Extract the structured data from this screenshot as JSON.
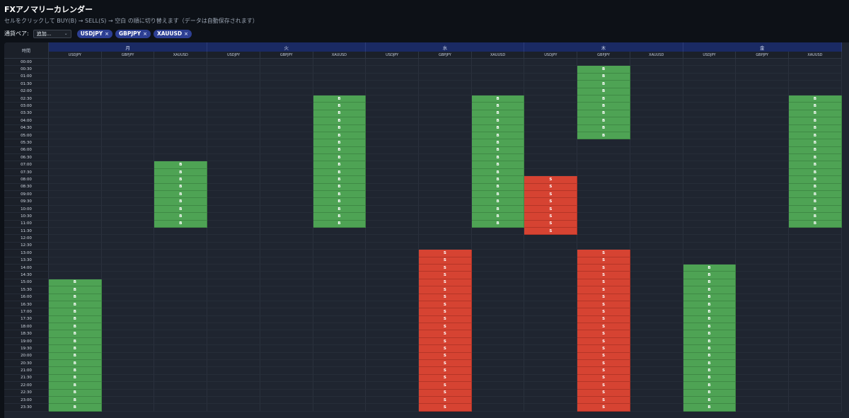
{
  "app": {
    "title": "FXアノマリーカレンダー",
    "subtitle": "セルをクリックして BUY(B) → SELL(S) → 空白 の順に切り替えます（データは自動保存されます）"
  },
  "pair_bar": {
    "label": "通貨ペア:",
    "add_select_value": "追加...",
    "chips": [
      {
        "label": "USDJPY",
        "remove": "×"
      },
      {
        "label": "GBPJPY",
        "remove": "×"
      },
      {
        "label": "XAUUSD",
        "remove": "×"
      }
    ]
  },
  "calendar": {
    "time_header": "時間",
    "days": [
      "月",
      "火",
      "水",
      "木",
      "金"
    ],
    "pairs": [
      "USDJPY",
      "GBPJPY",
      "XAUUSD"
    ],
    "buy_label": "B",
    "sell_label": "S",
    "times": [
      "00:00",
      "00:30",
      "01:00",
      "01:30",
      "02:00",
      "02:30",
      "03:00",
      "03:30",
      "04:00",
      "04:30",
      "05:00",
      "05:30",
      "06:00",
      "06:30",
      "07:00",
      "07:30",
      "08:00",
      "08:30",
      "09:00",
      "09:30",
      "10:00",
      "10:30",
      "11:00",
      "11:30",
      "12:00",
      "12:30",
      "13:00",
      "13:30",
      "14:00",
      "14:30",
      "15:00",
      "15:30",
      "16:00",
      "16:30",
      "17:00",
      "17:30",
      "18:00",
      "18:30",
      "19:00",
      "19:30",
      "20:00",
      "20:30",
      "21:00",
      "21:30",
      "22:00",
      "22:30",
      "23:00",
      "23:30"
    ],
    "signals": [
      {
        "day": "月",
        "pair": "USDJPY",
        "signal": "B",
        "from": "15:00",
        "to": "23:30"
      },
      {
        "day": "月",
        "pair": "XAUUSD",
        "signal": "B",
        "from": "07:00",
        "to": "11:00"
      },
      {
        "day": "火",
        "pair": "XAUUSD",
        "signal": "B",
        "from": "02:30",
        "to": "11:00"
      },
      {
        "day": "水",
        "pair": "GBPJPY",
        "signal": "S",
        "from": "13:00",
        "to": "23:30"
      },
      {
        "day": "水",
        "pair": "XAUUSD",
        "signal": "B",
        "from": "02:30",
        "to": "11:00"
      },
      {
        "day": "木",
        "pair": "USDJPY",
        "signal": "S",
        "from": "08:00",
        "to": "11:30"
      },
      {
        "day": "木",
        "pair": "GBPJPY",
        "signal": "B",
        "from": "00:30",
        "to": "05:00"
      },
      {
        "day": "木",
        "pair": "GBPJPY",
        "signal": "S",
        "from": "13:00",
        "to": "23:30"
      },
      {
        "day": "金",
        "pair": "USDJPY",
        "signal": "B",
        "from": "14:00",
        "to": "23:30"
      },
      {
        "day": "金",
        "pair": "XAUUSD",
        "signal": "B",
        "from": "02:30",
        "to": "11:00"
      }
    ]
  },
  "colors": {
    "buy": "#4ea354",
    "sell": "#d64332",
    "day_header": "#1a2a63",
    "chip": "#2d3f93"
  }
}
